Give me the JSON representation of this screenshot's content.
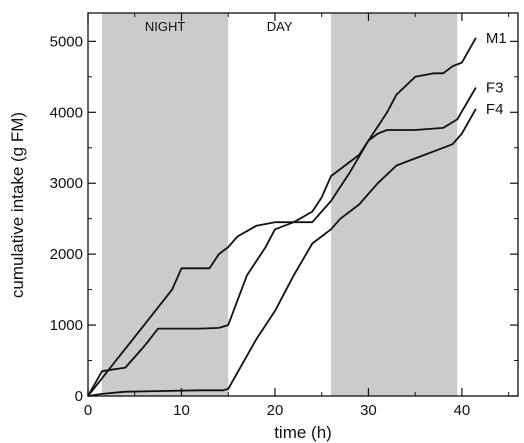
{
  "chart_data": {
    "type": "line",
    "xlabel": "time (h)",
    "ylabel": "cumulative intake (g FM)",
    "xlim": [
      0,
      46
    ],
    "ylim": [
      0,
      5400
    ],
    "xticks": [
      0,
      10,
      20,
      30,
      40
    ],
    "xminor": [
      5,
      15,
      25,
      35,
      45
    ],
    "yticks": [
      0,
      1000,
      2000,
      3000,
      4000,
      5000
    ],
    "yminor": [
      500,
      1500,
      2500,
      3500,
      4500
    ],
    "grid": false,
    "bands": [
      {
        "label": "NIGHT",
        "from": 1.5,
        "to": 15.0,
        "shaded": true
      },
      {
        "label": "DAY",
        "from": 15.0,
        "to": 26.0,
        "shaded": false
      },
      {
        "label": "",
        "from": 26.0,
        "to": 39.5,
        "shaded": true
      }
    ],
    "colors": {
      "line": "#111111",
      "band": "#cbcbcb",
      "axis": "#111111"
    },
    "series": [
      {
        "name": "M1",
        "points": [
          [
            0,
            0
          ],
          [
            1.5,
            250
          ],
          [
            3,
            500
          ],
          [
            6,
            1000
          ],
          [
            9,
            1500
          ],
          [
            10,
            1800
          ],
          [
            13,
            1800
          ],
          [
            14,
            2000
          ],
          [
            15,
            2100
          ],
          [
            16,
            2250
          ],
          [
            18,
            2400
          ],
          [
            20,
            2450
          ],
          [
            22,
            2450
          ],
          [
            24,
            2450
          ],
          [
            26,
            2750
          ],
          [
            28,
            3150
          ],
          [
            30,
            3600
          ],
          [
            31,
            3800
          ],
          [
            32,
            4000
          ],
          [
            33,
            4250
          ],
          [
            35,
            4500
          ],
          [
            37,
            4550
          ],
          [
            38,
            4550
          ],
          [
            39,
            4650
          ],
          [
            40,
            4700
          ],
          [
            41.5,
            5050
          ]
        ]
      },
      {
        "name": "F3",
        "points": [
          [
            0,
            0
          ],
          [
            1.5,
            350
          ],
          [
            3,
            380
          ],
          [
            4,
            400
          ],
          [
            6,
            700
          ],
          [
            7.5,
            950
          ],
          [
            10,
            950
          ],
          [
            12,
            950
          ],
          [
            14,
            960
          ],
          [
            15,
            1000
          ],
          [
            17,
            1700
          ],
          [
            19,
            2100
          ],
          [
            20,
            2350
          ],
          [
            22,
            2450
          ],
          [
            24,
            2600
          ],
          [
            25,
            2800
          ],
          [
            26,
            3100
          ],
          [
            27,
            3200
          ],
          [
            29,
            3400
          ],
          [
            30,
            3600
          ],
          [
            31,
            3700
          ],
          [
            32,
            3750
          ],
          [
            35,
            3750
          ],
          [
            38,
            3780
          ],
          [
            39.5,
            3900
          ],
          [
            41.5,
            4350
          ]
        ]
      },
      {
        "name": "F4",
        "points": [
          [
            0,
            0
          ],
          [
            1.5,
            30
          ],
          [
            4,
            60
          ],
          [
            8,
            70
          ],
          [
            12,
            80
          ],
          [
            14.5,
            80
          ],
          [
            15,
            100
          ],
          [
            18,
            800
          ],
          [
            20,
            1200
          ],
          [
            22,
            1700
          ],
          [
            24,
            2150
          ],
          [
            25,
            2250
          ],
          [
            26,
            2350
          ],
          [
            27,
            2500
          ],
          [
            29,
            2700
          ],
          [
            31,
            3000
          ],
          [
            33,
            3250
          ],
          [
            35,
            3350
          ],
          [
            36,
            3400
          ],
          [
            38,
            3500
          ],
          [
            39,
            3550
          ],
          [
            40,
            3700
          ],
          [
            41.5,
            4050
          ]
        ]
      }
    ]
  }
}
